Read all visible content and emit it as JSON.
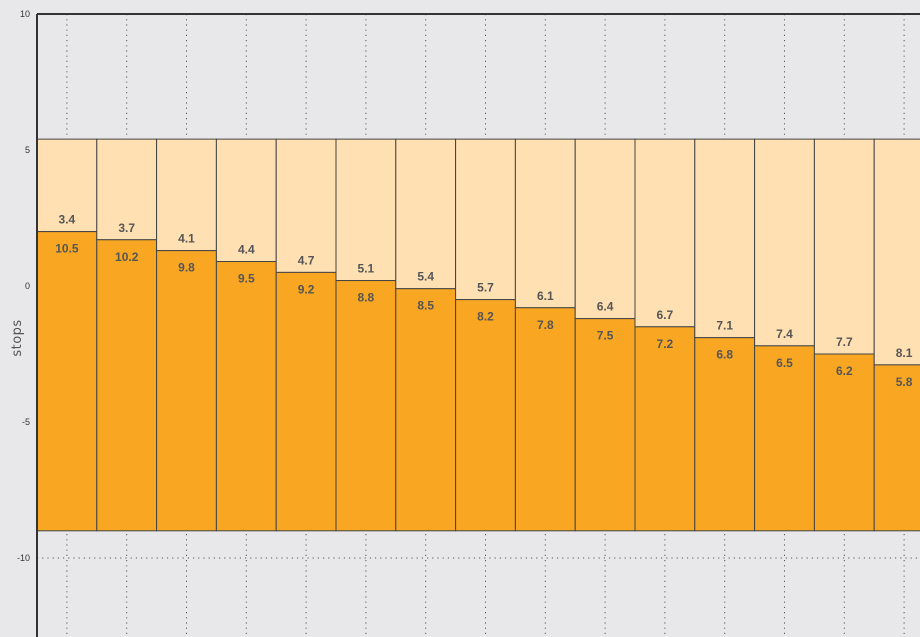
{
  "chart_data": {
    "type": "bar",
    "ylabel": "stops",
    "ylim": [
      -13,
      10
    ],
    "yticks": [
      "10",
      "5",
      "0",
      "-5",
      "-10"
    ],
    "grid": true,
    "categories": [
      "",
      "",
      "",
      "",
      "",
      "",
      "",
      "",
      "",
      "",
      "",
      "",
      "",
      "",
      ""
    ],
    "bottom": -9.0,
    "top": 5.4,
    "dark_top": [
      2.0,
      1.7,
      1.3,
      0.9,
      0.5,
      0.2,
      -0.1,
      -0.5,
      -0.8,
      -1.2,
      -1.5,
      -1.9,
      -2.2,
      -2.5,
      -2.9
    ],
    "light_labels": [
      "3.4",
      "3.7",
      "4.1",
      "4.4",
      "4.7",
      "5.1",
      "5.4",
      "5.7",
      "6.1",
      "6.4",
      "6.7",
      "7.1",
      "7.4",
      "7.7",
      "8.1"
    ],
    "dark_labels": [
      "10.5",
      "10.2",
      "9.8",
      "9.5",
      "9.2",
      "8.8",
      "8.5",
      "8.2",
      "7.8",
      "7.5",
      "7.2",
      "6.8",
      "6.5",
      "6.2",
      "5.8"
    ],
    "colors": {
      "background": "#e8e8ea",
      "light_fill": "#ffe0b3",
      "dark_fill": "#f9a722",
      "stroke": "#444444",
      "label": "#555555",
      "grid": "#555555"
    }
  }
}
